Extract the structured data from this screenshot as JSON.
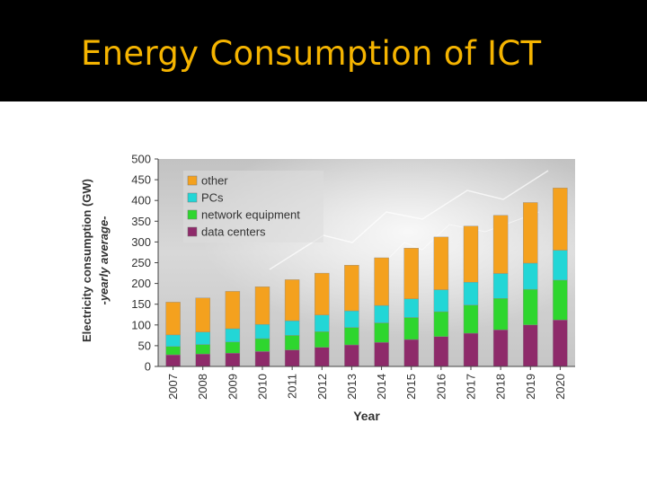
{
  "slide": {
    "title": "Energy Consumption of ICT",
    "title_color": "#f5b400",
    "background_color": "#000000"
  },
  "chart_data": {
    "type": "bar",
    "stacked": true,
    "categories": [
      "2007",
      "2008",
      "2009",
      "2010",
      "2011",
      "2012",
      "2013",
      "2014",
      "2015",
      "2016",
      "2017",
      "2018",
      "2019",
      "2020"
    ],
    "series": [
      {
        "name": "data centers",
        "color": "#8e2a6a",
        "values": [
          28,
          30,
          32,
          36,
          40,
          46,
          52,
          58,
          65,
          72,
          80,
          88,
          100,
          112
        ]
      },
      {
        "name": "network equipment",
        "color": "#2ed62e",
        "values": [
          20,
          23,
          27,
          31,
          35,
          38,
          42,
          47,
          53,
          60,
          68,
          76,
          86,
          96
        ]
      },
      {
        "name": "PCs",
        "color": "#22d6d6",
        "values": [
          28,
          30,
          32,
          34,
          35,
          40,
          40,
          42,
          45,
          53,
          55,
          60,
          63,
          72
        ]
      },
      {
        "name": "other",
        "color": "#f4a11e",
        "values": [
          79,
          82,
          90,
          91,
          99,
          101,
          110,
          115,
          122,
          127,
          135,
          140,
          146,
          150
        ]
      }
    ],
    "title": "",
    "xlabel": "Year",
    "ylabel": "Electricity consumption (GW)",
    "ylabel2": "-yearly average-",
    "ylim": [
      0,
      500
    ],
    "yticks": [
      "0",
      "50",
      "100",
      "150",
      "200",
      "250",
      "300",
      "350",
      "400",
      "450",
      "500"
    ],
    "grid": false,
    "legend_position": "top-left"
  }
}
